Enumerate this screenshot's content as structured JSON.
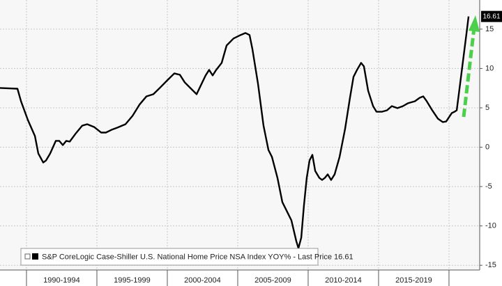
{
  "chart_data": {
    "type": "line",
    "x": [
      1988.12,
      1989.36,
      1989.61,
      1990.1,
      1990.6,
      1990.84,
      1991.19,
      1991.39,
      1991.68,
      1992.08,
      1992.33,
      1992.58,
      1992.82,
      1993.07,
      1993.47,
      1993.96,
      1994.31,
      1994.8,
      1995.3,
      1995.64,
      1996.04,
      1996.44,
      1997.03,
      1997.53,
      1998.02,
      1998.52,
      1999.01,
      1999.51,
      2000.0,
      2000.5,
      2000.89,
      2001.24,
      2001.73,
      2002.08,
      2002.48,
      2002.72,
      2002.97,
      2003.22,
      2003.47,
      2003.86,
      2004.21,
      2004.7,
      2005.2,
      2005.55,
      2005.84,
      2006.04,
      2006.44,
      2006.83,
      2007.18,
      2007.43,
      2007.82,
      2008.17,
      2008.42,
      2008.81,
      2009.16,
      2009.31,
      2009.51,
      2009.7,
      2009.9,
      2010.1,
      2010.3,
      2010.5,
      2010.79,
      2010.99,
      2011.19,
      2011.39,
      2011.63,
      2011.88,
      2012.23,
      2012.62,
      2012.97,
      2013.22,
      2013.47,
      2013.76,
      2013.96,
      2014.26,
      2014.61,
      2014.85,
      2015.25,
      2015.6,
      2015.94,
      2016.34,
      2016.73,
      2017.08,
      2017.58,
      2017.92,
      2018.17,
      2018.42,
      2018.81,
      2019.21,
      2019.56,
      2019.8,
      2020.2,
      2020.4,
      2020.55,
      2020.79,
      2021.04,
      2021.29,
      2021.39
    ],
    "series": [
      {
        "name": "S&P CoreLogic Case-Shiller U.S. National Home Price NSA Index YOY%",
        "color": "#000000",
        "values": [
          7.52,
          7.43,
          5.84,
          3.45,
          1.42,
          -0.8,
          -1.95,
          -1.68,
          -0.8,
          0.8,
          0.8,
          0.27,
          0.8,
          0.71,
          1.68,
          2.74,
          2.92,
          2.57,
          1.86,
          1.86,
          2.21,
          2.48,
          2.92,
          3.98,
          5.4,
          6.46,
          6.73,
          7.61,
          8.5,
          9.38,
          9.2,
          8.23,
          7.35,
          6.73,
          8.23,
          9.12,
          9.82,
          9.12,
          9.82,
          10.71,
          12.92,
          13.81,
          14.25,
          14.51,
          14.25,
          12.48,
          8.05,
          2.74,
          -0.35,
          -1.24,
          -3.89,
          -6.99,
          -7.88,
          -9.29,
          -11.95,
          -12.83,
          -11.5,
          -7.43,
          -3.89,
          -1.68,
          -0.97,
          -3.01,
          -3.89,
          -4.16,
          -3.89,
          -3.45,
          -4.16,
          -3.45,
          -1.24,
          2.3,
          6.28,
          8.94,
          9.82,
          10.71,
          10.27,
          7.17,
          5.22,
          4.51,
          4.51,
          4.69,
          5.22,
          4.96,
          5.22,
          5.58,
          5.84,
          6.28,
          6.46,
          5.84,
          4.69,
          3.63,
          3.19,
          3.27,
          4.34,
          4.51,
          4.69,
          8.05,
          11.59,
          15.13,
          16.61
        ]
      }
    ],
    "last_price_label": "- Last Price",
    "last_price": 16.61,
    "xlim": [
      1988.12,
      2022.18
    ],
    "xbands": [
      1990,
      1995,
      2000,
      2005,
      2010,
      2015,
      2020
    ],
    "xticks": [
      {
        "value": 1992.5,
        "label": "1990-1994"
      },
      {
        "value": 1997.5,
        "label": "1995-1999"
      },
      {
        "value": 2002.5,
        "label": "2000-2004"
      },
      {
        "value": 2007.5,
        "label": "2005-2009"
      },
      {
        "value": 2012.5,
        "label": "2010-2014"
      },
      {
        "value": 2017.5,
        "label": "2015-2019"
      }
    ],
    "ylim": [
      -15.6,
      18.7
    ],
    "yticks": [
      -15,
      -10,
      -5,
      0,
      5,
      10,
      15
    ],
    "grid": true
  }
}
